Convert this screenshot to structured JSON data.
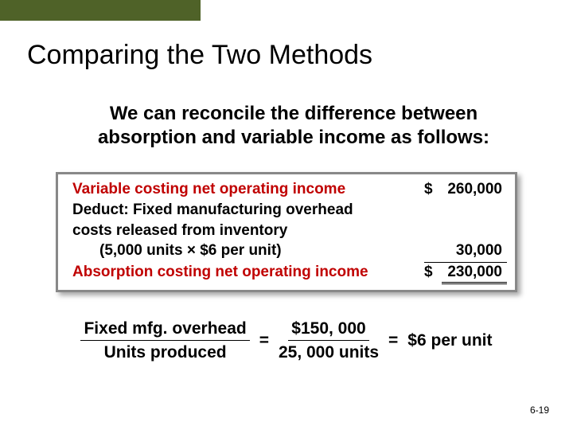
{
  "colors": {
    "accent_bar": "#4f6228",
    "highlight_text": "#c00000",
    "border": "#888888",
    "background": "#ffffff"
  },
  "title": "Comparing the Two Methods",
  "subtitle": "We can reconcile the difference between absorption and variable income as follows:",
  "table": {
    "rows": [
      {
        "label": "Variable costing net operating income",
        "dollar": "$",
        "amount": "260,000",
        "highlight": true
      },
      {
        "label": "Deduct: Fixed manufacturing overhead",
        "dollar": "",
        "amount": "",
        "highlight": false
      },
      {
        "label": "costs released from inventory",
        "dollar": "",
        "amount": "",
        "highlight": false
      },
      {
        "label_indent": "(5,000 units × $6 per unit)",
        "dollar": "",
        "amount": "30,000",
        "highlight": false,
        "underline_after": true
      },
      {
        "label": "Absorption costing net operating income",
        "dollar": "$",
        "amount": "230,000",
        "highlight": true,
        "double_underline": true
      }
    ]
  },
  "equation": {
    "left": {
      "num": "Fixed mfg. overhead",
      "den": "Units produced"
    },
    "mid": {
      "num": "$150, 000",
      "den": "25, 000 units"
    },
    "result": "$6 per unit"
  },
  "slide_number": "6-19"
}
